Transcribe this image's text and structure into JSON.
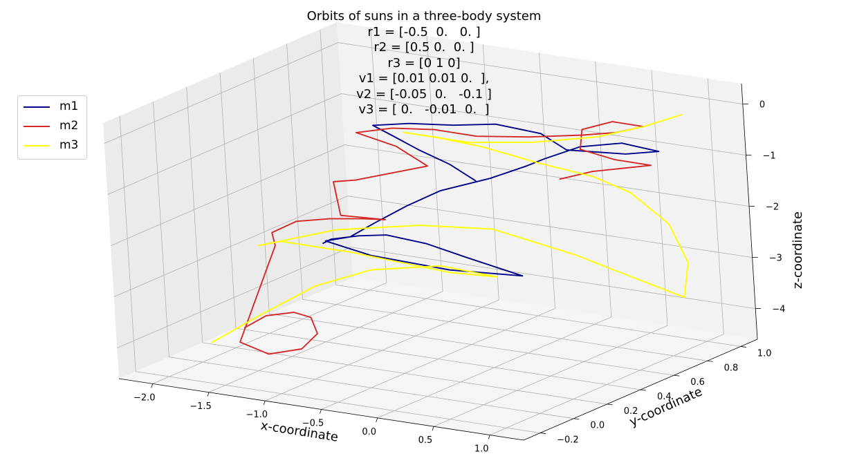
{
  "chart_data": {
    "type": "line",
    "projection": "3d",
    "title_lines": [
      "Orbits of suns in a three-body system",
      "r1 = [-0.5  0.   0. ]",
      "r2 = [0.5 0.  0. ]",
      "r3 = [0 1 0]",
      "v1 = [0.01 0.01 0.  ],",
      "v2 = [-0.05  0.   -0.1 ]",
      "v3 = [ 0.   -0.01  0.  ]"
    ],
    "xlabel": "x-coordinate",
    "ylabel": "y-coordinate",
    "zlabel": "z-coordinate",
    "xlim": [
      -2.3,
      1.3
    ],
    "ylim": [
      -0.3,
      1.1
    ],
    "zlim": [
      -4.6,
      0.4
    ],
    "xticks": [
      "−2.0",
      "−1.5",
      "−1.0",
      "−0.5",
      "0.0",
      "0.5",
      "1.0"
    ],
    "yticks": [
      "−0.2",
      "0.0",
      "0.2",
      "0.4",
      "0.6",
      "0.8",
      "1.0"
    ],
    "zticks": [
      "0",
      "−1",
      "−2",
      "−3",
      "−4"
    ],
    "grid": true,
    "legend_position": "upper-left",
    "series": [
      {
        "name": "m1",
        "color": "#00008b",
        "points": [
          [
            -1.7,
            0.55,
            -2.95
          ],
          [
            -1.55,
            0.5,
            -2.75
          ],
          [
            -1.3,
            0.5,
            -2.6
          ],
          [
            -1.05,
            0.5,
            -2.5
          ],
          [
            -0.7,
            0.5,
            -2.55
          ],
          [
            -0.35,
            0.5,
            -2.7
          ],
          [
            0.15,
            0.5,
            -2.9
          ],
          [
            -0.5,
            0.5,
            -3.0
          ],
          [
            -1.2,
            0.5,
            -2.95
          ],
          [
            -1.6,
            0.5,
            -2.8
          ],
          [
            -1.3,
            0.45,
            -2.55
          ],
          [
            -1.15,
            0.5,
            -2.3
          ],
          [
            -1.0,
            0.6,
            -2.05
          ],
          [
            -0.85,
            0.7,
            -1.85
          ],
          [
            -0.55,
            0.8,
            -1.65
          ],
          [
            -0.3,
            0.85,
            -1.4
          ],
          [
            -0.05,
            0.8,
            -1.1
          ],
          [
            0.2,
            0.85,
            -0.85
          ],
          [
            0.5,
            0.9,
            -0.75
          ],
          [
            0.75,
            0.95,
            -0.9
          ],
          [
            0.45,
            0.95,
            -1.05
          ],
          [
            0.0,
            0.9,
            -1.05
          ],
          [
            -0.3,
            0.95,
            -0.9
          ],
          [
            -0.7,
            0.95,
            -0.85
          ],
          [
            -1.0,
            0.9,
            -0.9
          ],
          [
            -1.4,
            0.9,
            -1.0
          ],
          [
            -1.65,
            0.85,
            -1.05
          ],
          [
            -1.4,
            0.8,
            -1.1
          ],
          [
            -1.1,
            0.75,
            -1.2
          ],
          [
            -0.75,
            0.7,
            -1.3
          ],
          [
            -0.45,
            0.65,
            -1.45
          ]
        ]
      },
      {
        "name": "m2",
        "color": "#d62728",
        "points": [
          [
            -1.45,
            -0.1,
            -3.6
          ],
          [
            -1.25,
            -0.1,
            -3.3
          ],
          [
            -1.0,
            -0.1,
            -3.15
          ],
          [
            -0.85,
            -0.1,
            -3.2
          ],
          [
            -0.8,
            -0.1,
            -3.5
          ],
          [
            -0.95,
            -0.1,
            -3.85
          ],
          [
            -1.25,
            -0.1,
            -4.05
          ],
          [
            -1.5,
            -0.1,
            -3.9
          ],
          [
            -1.9,
            0.4,
            -2.85
          ],
          [
            -2.0,
            0.45,
            -2.7
          ],
          [
            -1.85,
            0.5,
            -2.5
          ],
          [
            -1.55,
            0.5,
            -2.35
          ],
          [
            -1.25,
            0.5,
            -2.25
          ],
          [
            -1.05,
            0.5,
            -2.2
          ],
          [
            -1.45,
            0.5,
            -2.25
          ],
          [
            -1.65,
            0.6,
            -1.8
          ],
          [
            -1.45,
            0.6,
            -1.7
          ],
          [
            -1.2,
            0.65,
            -1.55
          ],
          [
            -0.95,
            0.7,
            -1.4
          ],
          [
            -1.3,
            0.75,
            -1.2
          ],
          [
            -1.65,
            0.75,
            -1.05
          ],
          [
            -1.4,
            0.8,
            -0.95
          ],
          [
            -1.1,
            0.85,
            -0.95
          ],
          [
            -0.8,
            0.9,
            -1.05
          ],
          [
            -0.4,
            0.95,
            -1.0
          ],
          [
            0.0,
            1.0,
            -0.9
          ],
          [
            0.3,
            1.0,
            -0.75
          ],
          [
            0.55,
            1.0,
            -0.55
          ],
          [
            0.35,
            0.95,
            -0.45
          ],
          [
            0.15,
            0.9,
            -0.6
          ],
          [
            0.2,
            0.85,
            -0.9
          ],
          [
            0.5,
            0.85,
            -1.0
          ],
          [
            0.75,
            0.9,
            -1.1
          ],
          [
            0.3,
            0.85,
            -1.3
          ],
          [
            0.0,
            0.85,
            -1.55
          ]
        ]
      },
      {
        "name": "m3",
        "color": "#ffff00",
        "points": [
          [
            -1.6,
            -0.2,
            -3.8
          ],
          [
            -1.3,
            -0.1,
            -3.3
          ],
          [
            -1.1,
            0.1,
            -2.95
          ],
          [
            -0.9,
            0.3,
            -2.85
          ],
          [
            -0.5,
            0.45,
            -2.85
          ],
          [
            0.0,
            0.45,
            -2.9
          ],
          [
            -0.5,
            0.5,
            -3.05
          ],
          [
            -1.3,
            0.45,
            -2.85
          ],
          [
            -1.85,
            0.4,
            -2.75
          ],
          [
            -2.05,
            0.4,
            -2.9
          ],
          [
            -1.5,
            0.5,
            -2.55
          ],
          [
            -0.9,
            0.6,
            -2.4
          ],
          [
            -0.4,
            0.7,
            -2.45
          ],
          [
            0.1,
            0.85,
            -3.0
          ],
          [
            0.4,
            0.9,
            -3.3
          ],
          [
            0.9,
            0.95,
            -3.7
          ],
          [
            0.95,
            0.95,
            -3.0
          ],
          [
            0.8,
            0.95,
            -2.3
          ],
          [
            0.55,
            0.9,
            -1.7
          ],
          [
            0.3,
            0.85,
            -1.4
          ],
          [
            -0.1,
            0.8,
            -1.2
          ],
          [
            -0.6,
            0.8,
            -1.05
          ],
          [
            -1.0,
            0.8,
            -1.0
          ],
          [
            -1.3,
            0.8,
            -1.0
          ],
          [
            -0.8,
            0.85,
            -1.1
          ],
          [
            -0.3,
            0.9,
            -1.0
          ],
          [
            0.2,
            0.95,
            -0.8
          ],
          [
            0.55,
            1.0,
            -0.55
          ],
          [
            0.9,
            1.0,
            -0.2
          ]
        ]
      }
    ]
  }
}
